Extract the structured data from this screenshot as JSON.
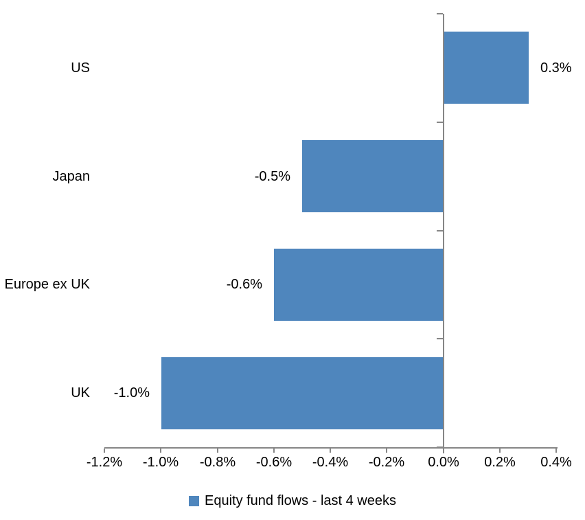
{
  "chart_data": {
    "type": "bar",
    "orientation": "horizontal",
    "categories": [
      "US",
      "Japan",
      "Europe ex UK",
      "UK"
    ],
    "values": [
      0.3,
      -0.5,
      -0.6,
      -1.0
    ],
    "data_labels": [
      "0.3%",
      "-0.5%",
      "-0.6%",
      "-1.0%"
    ],
    "series": [
      {
        "name": "Equity fund flows - last 4 weeks",
        "values": [
          0.3,
          -0.5,
          -0.6,
          -1.0
        ]
      }
    ],
    "x_axis": {
      "min": -1.2,
      "max": 0.4,
      "step": 0.2,
      "tick_labels": [
        "-1.2%",
        "-1.0%",
        "-0.8%",
        "-0.6%",
        "-0.4%",
        "-0.2%",
        "0.0%",
        "0.2%",
        "0.4%"
      ]
    },
    "legend": {
      "position": "bottom",
      "label": "Equity fund flows - last 4 weeks"
    },
    "grid": false,
    "colors": {
      "bar": "#4F86BD",
      "axis": "#868686",
      "text": "#000000",
      "background": "#FFFFFF"
    }
  }
}
